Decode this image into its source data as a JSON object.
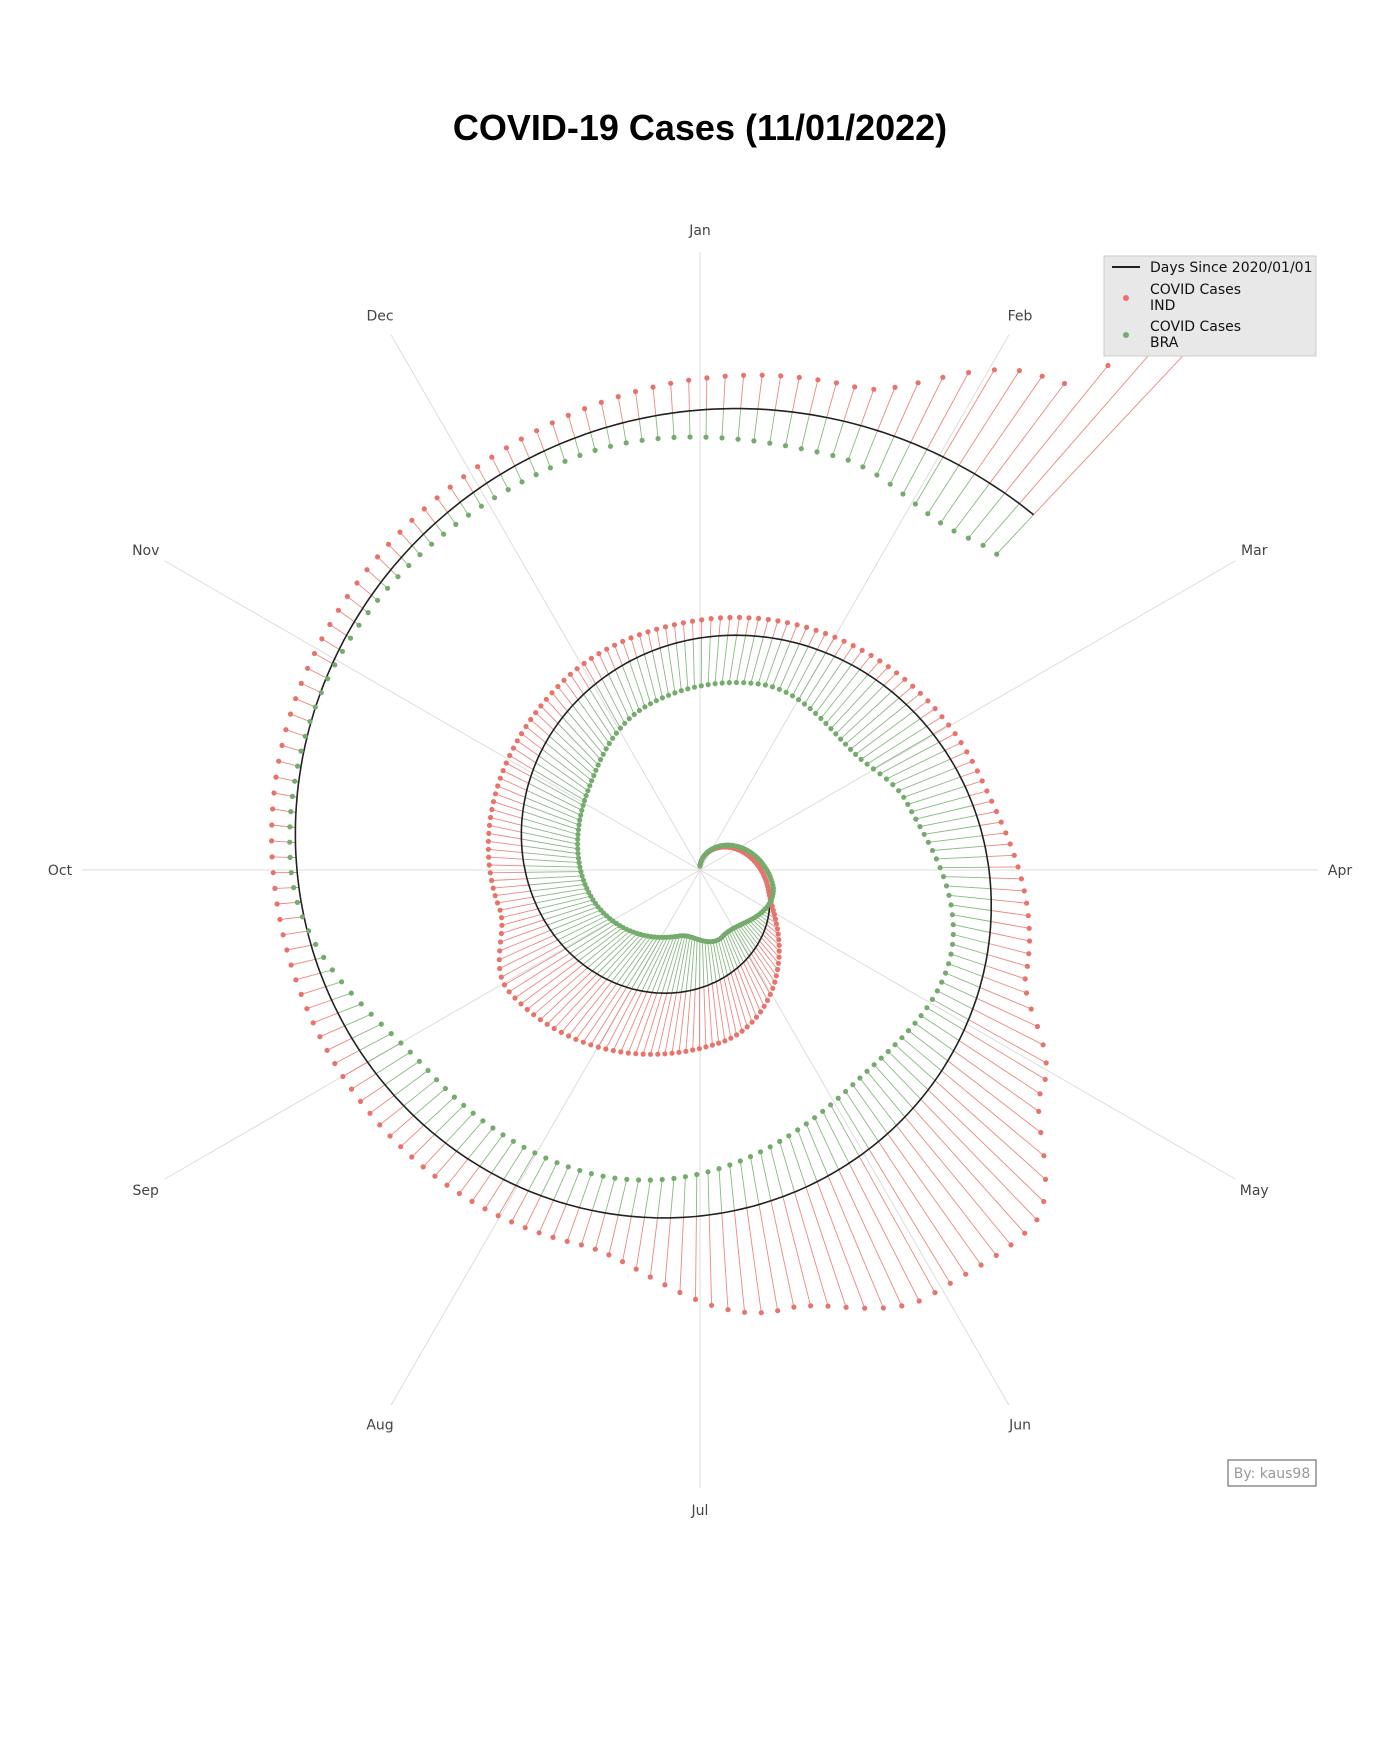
{
  "chart_data": {
    "type": "scatter",
    "subtype": "spiral-radial-stem",
    "title": "COVID-19 Cases (11/01/2022)",
    "angular_axis": {
      "labels": [
        "Jan",
        "Feb",
        "Mar",
        "Apr",
        "May",
        "Jun",
        "Jul",
        "Aug",
        "Sep",
        "Oct",
        "Nov",
        "Dec"
      ],
      "direction": "clockwise",
      "zero": "top"
    },
    "grid": true,
    "legend_placement": "top-right",
    "baseline": {
      "name": "Days Since 2020/01/01",
      "color": "#222222"
    },
    "series": [
      {
        "name": "COVID Cases\nIND",
        "name_lines": [
          "COVID Cases",
          "IND"
        ],
        "color": "#e8736b",
        "profile": [
          {
            "phase": 0.0,
            "deviation": 0.0
          },
          {
            "phase": 0.3,
            "deviation": 0.0
          },
          {
            "phase": 0.48,
            "deviation": 0.5
          },
          {
            "phase": 0.66,
            "deviation": 0.6
          },
          {
            "phase": 0.72,
            "deviation": 0.3
          },
          {
            "phase": 0.9,
            "deviation": 0.2
          },
          {
            "phase": 1.0,
            "deviation": 0.15
          },
          {
            "phase": 1.2,
            "deviation": 0.15
          },
          {
            "phase": 1.3,
            "deviation": 0.35
          },
          {
            "phase": 1.34,
            "deviation": 0.8
          },
          {
            "phase": 1.38,
            "deviation": 1.4
          },
          {
            "phase": 1.42,
            "deviation": 1.3
          },
          {
            "phase": 1.47,
            "deviation": 0.9
          },
          {
            "phase": 1.55,
            "deviation": 0.3
          },
          {
            "phase": 1.75,
            "deviation": 0.2
          },
          {
            "phase": 1.9,
            "deviation": 0.15
          },
          {
            "phase": 2.05,
            "deviation": 0.3
          },
          {
            "phase": 2.1,
            "deviation": 1.0
          },
          {
            "phase": 2.12,
            "deviation": 2.0
          }
        ]
      },
      {
        "name": "COVID Cases\nBRA",
        "name_lines": [
          "COVID Cases",
          "BRA"
        ],
        "color": "#76ab6e",
        "profile": [
          {
            "phase": 0.0,
            "deviation": 0.0
          },
          {
            "phase": 0.28,
            "deviation": 0.05
          },
          {
            "phase": 0.45,
            "deviation": -0.3
          },
          {
            "phase": 0.55,
            "deviation": -0.5
          },
          {
            "phase": 0.7,
            "deviation": -0.45
          },
          {
            "phase": 0.85,
            "deviation": -0.5
          },
          {
            "phase": 0.95,
            "deviation": -0.4
          },
          {
            "phase": 1.05,
            "deviation": -0.4
          },
          {
            "phase": 1.15,
            "deviation": -0.6
          },
          {
            "phase": 1.2,
            "deviation": -0.5
          },
          {
            "phase": 1.3,
            "deviation": -0.3
          },
          {
            "phase": 1.4,
            "deviation": -0.5
          },
          {
            "phase": 1.55,
            "deviation": -0.3
          },
          {
            "phase": 1.65,
            "deviation": -0.35
          },
          {
            "phase": 1.75,
            "deviation": 0.05
          },
          {
            "phase": 1.95,
            "deviation": -0.15
          },
          {
            "phase": 2.05,
            "deviation": -0.3
          },
          {
            "phase": 2.1,
            "deviation": -0.5
          },
          {
            "phase": 2.12,
            "deviation": -0.45
          }
        ]
      }
    ]
  },
  "credit": "By: kaus98"
}
